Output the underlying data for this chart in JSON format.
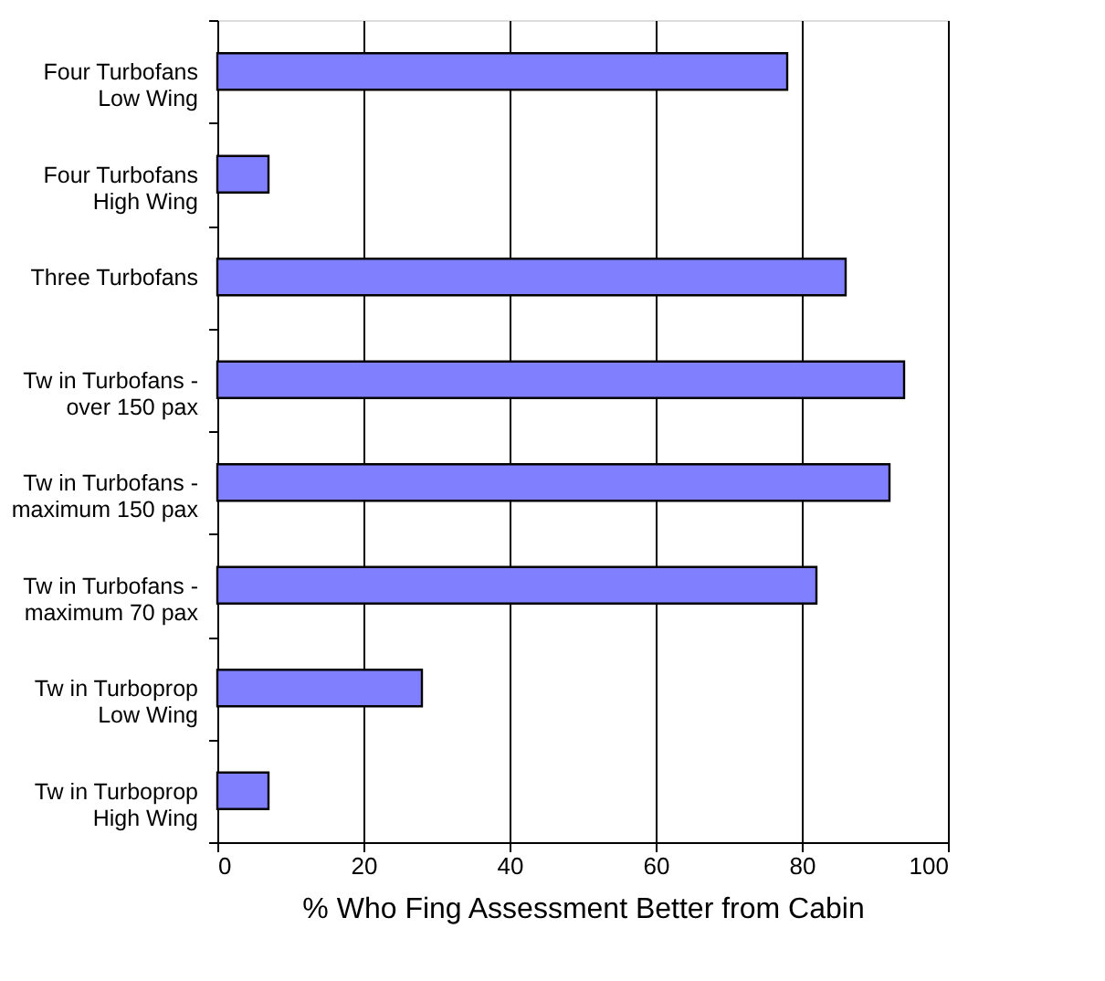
{
  "chart_data": {
    "type": "bar",
    "orientation": "horizontal",
    "xlabel": "% Who Fing Assessment Better from Cabin",
    "categories": [
      "Four Turbofans\nLow Wing",
      "Four Turbofans\nHigh Wing",
      "Three Turbofans",
      "Tw in Turbofans -\nover 150 pax",
      "Tw in Turbofans -\nmaximum 150 pax",
      "Tw in Turbofans -\nmaximum 70 pax",
      "Tw in Turboprop\nLow Wing",
      "Tw in Turboprop\nHigh Wing"
    ],
    "values": [
      78,
      7,
      86,
      94,
      92,
      82,
      28,
      7
    ],
    "color": "#8080ff",
    "xlim": [
      0,
      100
    ],
    "xticks": [
      0,
      20,
      40,
      60,
      80,
      100
    ],
    "grid": "x"
  }
}
